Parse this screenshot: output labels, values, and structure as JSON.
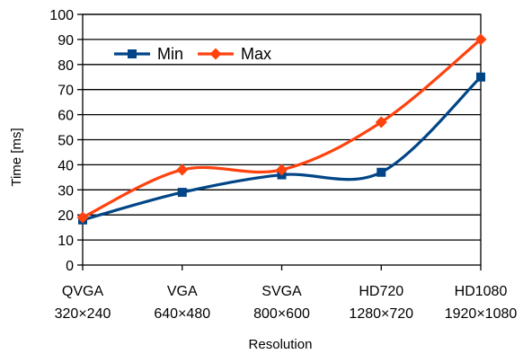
{
  "chart_data": {
    "type": "line",
    "title": "",
    "xlabel": "Resolution",
    "ylabel": "Time [ms]",
    "ylim": [
      0,
      100
    ],
    "y_ticks": [
      0,
      10,
      20,
      30,
      40,
      50,
      60,
      70,
      80,
      90,
      100
    ],
    "grid": "horizontal",
    "smooth": true,
    "legend_position": "top-left",
    "categories": [
      {
        "name": "QVGA",
        "size": "320×240"
      },
      {
        "name": "VGA",
        "size": "640×480"
      },
      {
        "name": "SVGA",
        "size": "800×600"
      },
      {
        "name": "HD720",
        "size": "1280×720"
      },
      {
        "name": "HD1080",
        "size": "1920×1080"
      }
    ],
    "series": [
      {
        "name": "Min",
        "color": "#004586",
        "marker": "square",
        "values": [
          18,
          29,
          36,
          37,
          75
        ]
      },
      {
        "name": "Max",
        "color": "#ff420e",
        "marker": "diamond",
        "values": [
          19,
          38,
          38,
          57,
          90
        ]
      }
    ]
  }
}
